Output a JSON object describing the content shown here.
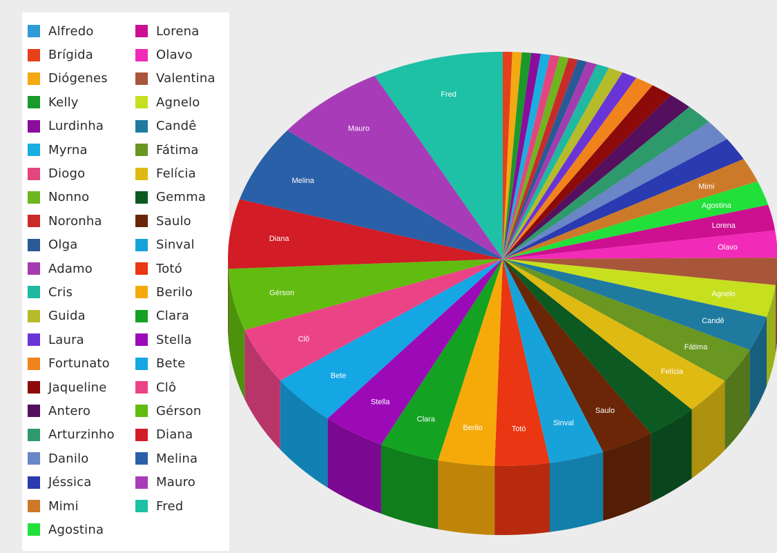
{
  "chart_data": {
    "type": "pie",
    "style": "3d",
    "legend_position": "left",
    "legend": [
      {
        "name": "Alfredo",
        "color": "#2f9bd6"
      },
      {
        "name": "Brígida",
        "color": "#e6401a"
      },
      {
        "name": "Diógenes",
        "color": "#f4a812"
      },
      {
        "name": "Kelly",
        "color": "#1a9a2a"
      },
      {
        "name": "Lurdinha",
        "color": "#8a0d9c"
      },
      {
        "name": "Myrna",
        "color": "#19aee0"
      },
      {
        "name": "Diogo",
        "color": "#e3467e"
      },
      {
        "name": "Nonno",
        "color": "#6fb520"
      },
      {
        "name": "Noronha",
        "color": "#c92a2a"
      },
      {
        "name": "Olga",
        "color": "#2a5a96"
      },
      {
        "name": "Adamo",
        "color": "#a43cb0"
      },
      {
        "name": "Cris",
        "color": "#20b8a0"
      },
      {
        "name": "Guida",
        "color": "#b6bb2a"
      },
      {
        "name": "Laura",
        "color": "#6a35d6"
      },
      {
        "name": "Fortunato",
        "color": "#f0831c"
      },
      {
        "name": "Jaqueline",
        "color": "#8c0a0a"
      },
      {
        "name": "Antero",
        "color": "#54105e"
      },
      {
        "name": "Arturzinho",
        "color": "#2e9a6c"
      },
      {
        "name": "Danilo",
        "color": "#6a86c6"
      },
      {
        "name": "Jéssica",
        "color": "#2a3ab0"
      },
      {
        "name": "Mimi",
        "color": "#cc7a2a"
      },
      {
        "name": "Agostina",
        "color": "#22e03a"
      },
      {
        "name": "Lorena",
        "color": "#cc1090"
      },
      {
        "name": "Olavo",
        "color": "#f22ab8"
      },
      {
        "name": "Valentina",
        "color": "#a8563a"
      },
      {
        "name": "Agnelo",
        "color": "#c6e020"
      },
      {
        "name": "Candê",
        "color": "#1f7aa0"
      },
      {
        "name": "Fátima",
        "color": "#6a9622"
      },
      {
        "name": "Felícia",
        "color": "#dfba12"
      },
      {
        "name": "Gemma",
        "color": "#0c5a22"
      },
      {
        "name": "Saulo",
        "color": "#6a2606"
      },
      {
        "name": "Sinval",
        "color": "#18a2da"
      },
      {
        "name": "Totó",
        "color": "#ea3612"
      },
      {
        "name": "Berilo",
        "color": "#f6aa0a"
      },
      {
        "name": "Clara",
        "color": "#14a222"
      },
      {
        "name": "Stella",
        "color": "#9c0ab8"
      },
      {
        "name": "Bete",
        "color": "#15a6e4"
      },
      {
        "name": "Clô",
        "color": "#ea4486"
      },
      {
        "name": "Gérson",
        "color": "#62bb10"
      },
      {
        "name": "Diana",
        "color": "#d21c26"
      },
      {
        "name": "Melina",
        "color": "#2a60a8"
      },
      {
        "name": "Mauro",
        "color": "#a83cb8"
      },
      {
        "name": "Fred",
        "color": "#1ec0a6"
      }
    ],
    "slices_visible": [
      {
        "name": "",
        "value": 0.55,
        "color": "#e6401a"
      },
      {
        "name": "",
        "value": 0.55,
        "color": "#f4a812"
      },
      {
        "name": "",
        "value": 0.55,
        "color": "#1a9a2a"
      },
      {
        "name": "",
        "value": 0.55,
        "color": "#8a0d9c"
      },
      {
        "name": "",
        "value": 0.55,
        "color": "#19aee0"
      },
      {
        "name": "",
        "value": 0.55,
        "color": "#e3467e"
      },
      {
        "name": "",
        "value": 0.55,
        "color": "#6fb520"
      },
      {
        "name": "",
        "value": 0.55,
        "color": "#c92a2a"
      },
      {
        "name": "",
        "value": 0.55,
        "color": "#2a5a96"
      },
      {
        "name": "",
        "value": 0.6,
        "color": "#a43cb0"
      },
      {
        "name": "",
        "value": 0.75,
        "color": "#20b8a0"
      },
      {
        "name": "",
        "value": 0.85,
        "color": "#b6bb2a"
      },
      {
        "name": "",
        "value": 0.9,
        "color": "#6a35d6"
      },
      {
        "name": "",
        "value": 1.1,
        "color": "#f0831c"
      },
      {
        "name": "",
        "value": 1.3,
        "color": "#8c0a0a"
      },
      {
        "name": "",
        "value": 1.4,
        "color": "#54105e"
      },
      {
        "name": "",
        "value": 1.6,
        "color": "#2e9a6c"
      },
      {
        "name": "",
        "value": 1.7,
        "color": "#6a86c6"
      },
      {
        "name": "",
        "value": 1.8,
        "color": "#2a3ab0"
      },
      {
        "name": "Mimi",
        "value": 1.9,
        "color": "#cc7a2a"
      },
      {
        "name": "Agostina",
        "value": 1.9,
        "color": "#22e03a"
      },
      {
        "name": "Lorena",
        "value": 2.0,
        "color": "#cc1090"
      },
      {
        "name": "Olavo",
        "value": 2.1,
        "color": "#f22ab8"
      },
      {
        "name": "",
        "value": 2.1,
        "color": "#a8563a"
      },
      {
        "name": "Agnelo",
        "value": 2.5,
        "color": "#c6e020"
      },
      {
        "name": "Candê",
        "value": 2.7,
        "color": "#1f7aa0"
      },
      {
        "name": "Fátima",
        "value": 2.8,
        "color": "#6a9622"
      },
      {
        "name": "Felícia",
        "value": 2.9,
        "color": "#dfba12"
      },
      {
        "name": "",
        "value": 3.0,
        "color": "#0c5a22"
      },
      {
        "name": "Saulo",
        "value": 3.1,
        "color": "#6a2606"
      },
      {
        "name": "Sinval",
        "value": 3.2,
        "color": "#18a2da"
      },
      {
        "name": "Totó",
        "value": 3.2,
        "color": "#ea3612"
      },
      {
        "name": "Berilo",
        "value": 3.3,
        "color": "#f6aa0a"
      },
      {
        "name": "Clara",
        "value": 3.5,
        "color": "#14a222"
      },
      {
        "name": "Stella",
        "value": 3.7,
        "color": "#9c0ab8"
      },
      {
        "name": "Bete",
        "value": 4.0,
        "color": "#15a6e4"
      },
      {
        "name": "Clô",
        "value": 4.4,
        "color": "#ea4486"
      },
      {
        "name": "Gérson",
        "value": 4.8,
        "color": "#62bb10"
      },
      {
        "name": "Diana",
        "value": 5.4,
        "color": "#d21c26"
      },
      {
        "name": "Melina",
        "value": 6.0,
        "color": "#2a60a8"
      },
      {
        "name": "Mauro",
        "value": 6.6,
        "color": "#a83cb8"
      },
      {
        "name": "Fred",
        "value": 7.7,
        "color": "#1ec0a6"
      }
    ]
  }
}
